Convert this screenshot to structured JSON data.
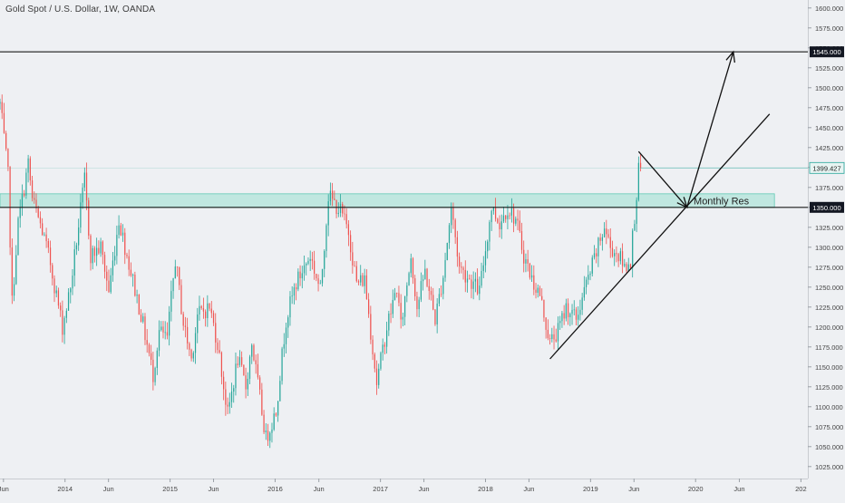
{
  "chart_data": {
    "type": "candlestick",
    "title": "Gold Spot / U.S. Dollar, 1W, OANDA",
    "ylim": [
      1010,
      1610
    ],
    "x_time_range": [
      "2013-05-20",
      "2021-01-25"
    ],
    "y_ticks": [
      "1025.000",
      "1050.000",
      "1075.000",
      "1100.000",
      "1125.000",
      "1150.000",
      "1175.000",
      "1200.000",
      "1225.000",
      "1250.000",
      "1275.000",
      "1300.000",
      "1325.000",
      "1350.000",
      "1375.000",
      "1400.000",
      "1425.000",
      "1450.000",
      "1475.000",
      "1500.000",
      "1525.000",
      "1550.000",
      "1575.000",
      "1600.000"
    ],
    "x_ticks": [
      {
        "label": "Jun",
        "date": "2013-06-01"
      },
      {
        "label": "2014",
        "date": "2014-01-01"
      },
      {
        "label": "Jun",
        "date": "2014-06-01"
      },
      {
        "label": "2015",
        "date": "2015-01-01"
      },
      {
        "label": "Jun",
        "date": "2015-06-01"
      },
      {
        "label": "2016",
        "date": "2016-01-01"
      },
      {
        "label": "Jun",
        "date": "2016-06-01"
      },
      {
        "label": "2017",
        "date": "2017-01-01"
      },
      {
        "label": "Jun",
        "date": "2017-06-01"
      },
      {
        "label": "2018",
        "date": "2018-01-01"
      },
      {
        "label": "Jun",
        "date": "2018-06-01"
      },
      {
        "label": "2019",
        "date": "2019-01-01"
      },
      {
        "label": "Jun",
        "date": "2019-06-01"
      },
      {
        "label": "2020",
        "date": "2020-01-01"
      },
      {
        "label": "Jun",
        "date": "2020-06-01"
      },
      {
        "label": "202",
        "date": "2021-01-01"
      }
    ],
    "price_path": [
      [
        "2013-05-20",
        1480
      ],
      [
        "2013-06-17",
        1390
      ],
      [
        "2013-07-01",
        1230
      ],
      [
        "2013-07-22",
        1330
      ],
      [
        "2013-08-26",
        1405
      ],
      [
        "2013-09-09",
        1360
      ],
      [
        "2013-10-14",
        1320
      ],
      [
        "2013-11-11",
        1280
      ],
      [
        "2013-12-23",
        1200
      ],
      [
        "2014-01-20",
        1250
      ],
      [
        "2014-03-10",
        1385
      ],
      [
        "2014-03-31",
        1290
      ],
      [
        "2014-05-05",
        1300
      ],
      [
        "2014-06-02",
        1245
      ],
      [
        "2014-07-07",
        1335
      ],
      [
        "2014-08-04",
        1290
      ],
      [
        "2014-09-22",
        1215
      ],
      [
        "2014-11-03",
        1140
      ],
      [
        "2014-11-24",
        1195
      ],
      [
        "2014-12-22",
        1185
      ],
      [
        "2015-01-19",
        1285
      ],
      [
        "2015-02-16",
        1205
      ],
      [
        "2015-03-16",
        1160
      ],
      [
        "2015-04-06",
        1215
      ],
      [
        "2015-05-18",
        1225
      ],
      [
        "2015-06-15",
        1180
      ],
      [
        "2015-07-20",
        1090
      ],
      [
        "2015-08-24",
        1160
      ],
      [
        "2015-09-21",
        1125
      ],
      [
        "2015-10-12",
        1180
      ],
      [
        "2015-11-30",
        1060
      ],
      [
        "2016-01-04",
        1095
      ],
      [
        "2016-02-08",
        1210
      ],
      [
        "2016-03-14",
        1255
      ],
      [
        "2016-05-02",
        1290
      ],
      [
        "2016-06-06",
        1245
      ],
      [
        "2016-07-04",
        1365
      ],
      [
        "2016-08-15",
        1345
      ],
      [
        "2016-09-12",
        1320
      ],
      [
        "2016-10-10",
        1255
      ],
      [
        "2016-11-07",
        1260
      ],
      [
        "2016-12-19",
        1130
      ],
      [
        "2017-01-23",
        1200
      ],
      [
        "2017-02-27",
        1250
      ],
      [
        "2017-03-13",
        1200
      ],
      [
        "2017-04-17",
        1290
      ],
      [
        "2017-05-08",
        1225
      ],
      [
        "2017-06-05",
        1270
      ],
      [
        "2017-07-10",
        1210
      ],
      [
        "2017-08-07",
        1265
      ],
      [
        "2017-09-04",
        1350
      ],
      [
        "2017-10-02",
        1275
      ],
      [
        "2017-12-11",
        1245
      ],
      [
        "2018-01-22",
        1350
      ],
      [
        "2018-02-19",
        1330
      ],
      [
        "2018-03-19",
        1350
      ],
      [
        "2018-04-16",
        1335
      ],
      [
        "2018-05-14",
        1290
      ],
      [
        "2018-06-11",
        1260
      ],
      [
        "2018-07-09",
        1240
      ],
      [
        "2018-08-13",
        1180
      ],
      [
        "2018-09-10",
        1195
      ],
      [
        "2018-10-08",
        1225
      ],
      [
        "2018-11-12",
        1210
      ],
      [
        "2018-12-10",
        1245
      ],
      [
        "2019-01-14",
        1285
      ],
      [
        "2019-02-18",
        1325
      ],
      [
        "2019-03-11",
        1300
      ],
      [
        "2019-04-08",
        1290
      ],
      [
        "2019-04-29",
        1275
      ],
      [
        "2019-05-20",
        1285
      ],
      [
        "2019-06-03",
        1340
      ],
      [
        "2019-06-17",
        1395
      ],
      [
        "2019-06-24",
        1405
      ]
    ],
    "current_price": "1399.427",
    "levels": [
      {
        "price": 1545.0,
        "label": "1545.000",
        "color": "#1a1a1a"
      },
      {
        "price": 1350.0,
        "label": "1350.000",
        "color": "#1a1a1a"
      }
    ],
    "zone": {
      "from": 1350,
      "to": 1367,
      "date_end": "2020-10-01",
      "color": "#9be0cf"
    },
    "zone_label": "Monthly Res",
    "trendline": {
      "start": [
        "2018-08-13",
        1160
      ],
      "end": [
        "2020-09-14",
        1467
      ]
    },
    "projection": [
      [
        "2019-06-17",
        1420
      ],
      [
        "2019-12-02",
        1350
      ],
      [
        "2020-05-11",
        1545
      ]
    ],
    "colors": {
      "up": "#26a69a",
      "down": "#ef5350",
      "background": "#eef0f3",
      "grid": "#e2e5ea",
      "current_price": "#26a69a"
    }
  }
}
